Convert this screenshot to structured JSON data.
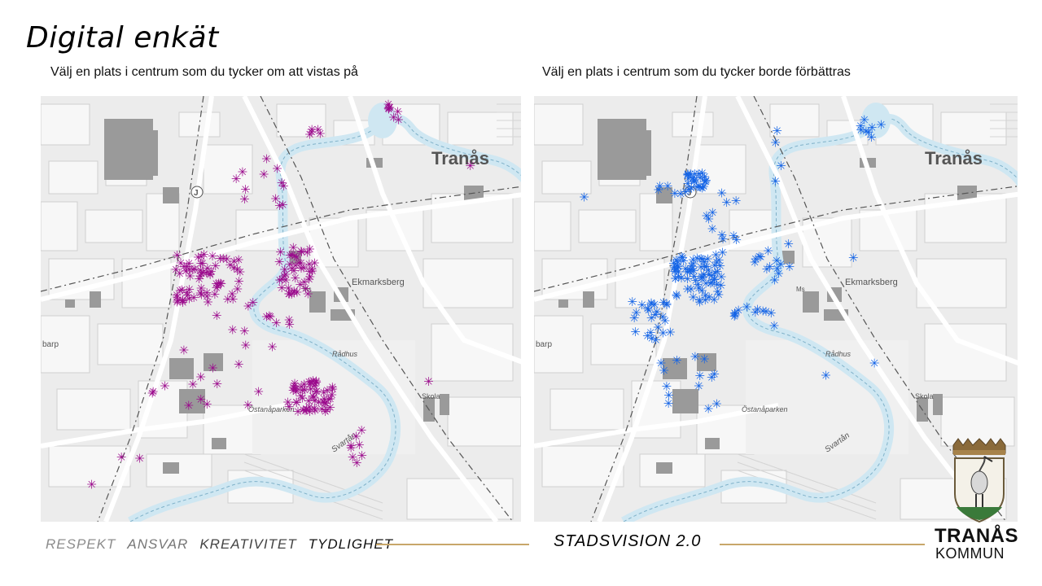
{
  "slide": {
    "title": "Digital enkät",
    "footer_values": [
      "RESPEKT",
      "ANSVAR",
      "KREATIVITET",
      "TYDLIGHET"
    ],
    "footer_title": "STADSVISION 2.0",
    "brand": {
      "line1": "TRANÅS",
      "line2": "KOMMUN"
    }
  },
  "maps": {
    "left": {
      "question": "Välj en plats i centrum som du tycker om att vistas på",
      "marker_color": "#9b0a8c"
    },
    "right": {
      "question": "Välj en plats i centrum som du tycker borde förbättras",
      "marker_color": "#1464e6"
    },
    "place_labels": {
      "city": "Tranås",
      "district": "Ekmarksberg",
      "park": "Östanåparken",
      "river": "Svartån",
      "school": "Skola",
      "town_hall": "Rådhus",
      "partial": "barp",
      "ms": "Ms",
      "road": "J"
    },
    "icons": {
      "marker": "asterisk-marker-icon",
      "coat_of_arms": "tranas-coat-of-arms-icon"
    }
  }
}
